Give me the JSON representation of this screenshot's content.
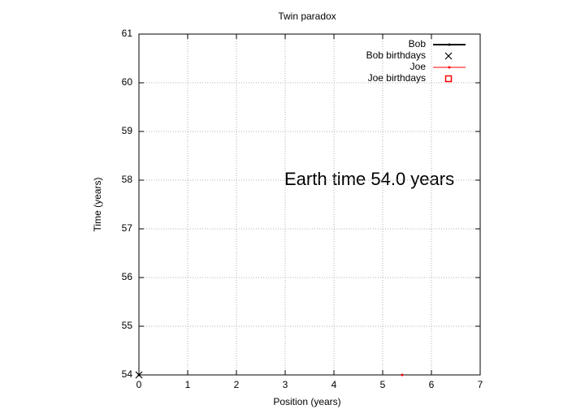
{
  "chart_data": {
    "type": "scatter",
    "title": "Twin paradox",
    "x_label": "Position (years)",
    "y_label": "Time (years)",
    "annotation": "Earth time 54.0 years",
    "xlim": [
      0,
      7
    ],
    "xticks": [
      0,
      1,
      2,
      3,
      4,
      5,
      6,
      7
    ],
    "ylim": [
      54,
      61
    ],
    "yticks": [
      54,
      55,
      56,
      57,
      58,
      59,
      60,
      61
    ],
    "grid": true,
    "legend": "top-right",
    "series": [
      {
        "name": "Bob",
        "color": "#000000",
        "style": "line",
        "x": [
          0
        ],
        "values": [
          54
        ]
      },
      {
        "name": "Bob birthdays",
        "color": "#000000",
        "style": "cross",
        "x": [
          0
        ],
        "values": [
          54
        ]
      },
      {
        "name": "Joe",
        "color": "#ff0000",
        "style": "line",
        "x": [
          5.4
        ],
        "values": [
          54
        ]
      },
      {
        "name": "Joe birthdays",
        "color": "#ff0000",
        "style": "square",
        "x": [],
        "values": []
      }
    ]
  }
}
